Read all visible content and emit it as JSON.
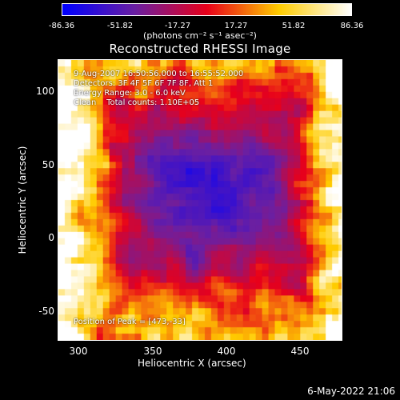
{
  "colorbar": {
    "ticks": [
      "-86.36",
      "-51.82",
      "-17.27",
      "17.27",
      "51.82",
      "86.36"
    ],
    "units": "(photons cm⁻² s⁻¹ asec⁻²)",
    "colors": [
      "#0000ff",
      "#6a1fa2",
      "#e8001a",
      "#ffcc00",
      "#ffffff"
    ]
  },
  "title": "Reconstructed RHESSI Image",
  "info": {
    "line1": "9-Aug-2007 16:50:56.000 to 16:55:52.000",
    "line2": "Detectors: 3F 4F 5F 6F 7F 8F, Att 1",
    "line3": "Energy Range: 3.0 - 6.0 keV",
    "line4": "Clean    Total counts: 1.10E+05",
    "position": "Position of Peak = [473,-33]"
  },
  "axes": {
    "xlabel": "Heliocentric X (arcsec)",
    "ylabel": "Heliocentric Y (arcsec)",
    "xticks": [
      "300",
      "350",
      "400",
      "450"
    ],
    "yticks": [
      "100",
      "50",
      "0",
      "-50"
    ]
  },
  "footer": "6-May-2022 21:06"
}
